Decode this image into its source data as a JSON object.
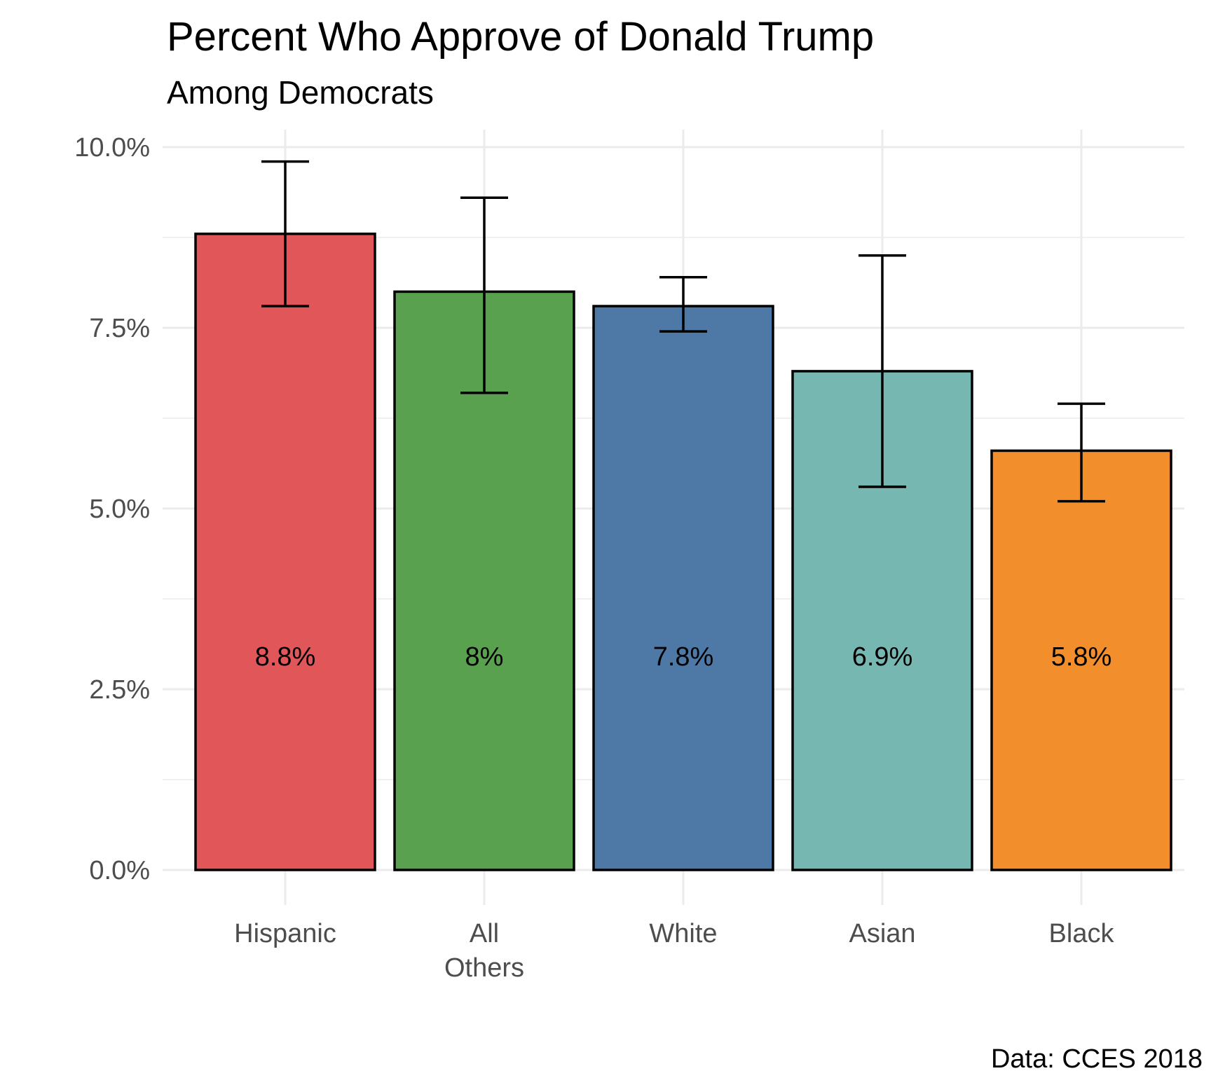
{
  "chart_data": {
    "type": "bar",
    "title": "Percent Who Approve of Donald Trump",
    "subtitle": "Among Democrats",
    "caption": "Data: CCES 2018",
    "xlabel": "",
    "ylabel": "",
    "ylim": [
      0,
      10
    ],
    "yticks": [
      "0.0%",
      "2.5%",
      "5.0%",
      "7.5%",
      "10.0%"
    ],
    "ytick_values": [
      0,
      2.5,
      5,
      7.5,
      10
    ],
    "grid": true,
    "categories": [
      {
        "label_lines": [
          "Hispanic"
        ],
        "value": 8.8,
        "display": "8.8%",
        "ci": [
          7.8,
          9.8
        ],
        "color": "#e15759"
      },
      {
        "label_lines": [
          "All",
          "Others"
        ],
        "value": 8.0,
        "display": "8%",
        "ci": [
          6.6,
          9.3
        ],
        "color": "#59a14f"
      },
      {
        "label_lines": [
          "White"
        ],
        "value": 7.8,
        "display": "7.8%",
        "ci": [
          7.45,
          8.2
        ],
        "color": "#4e79a7"
      },
      {
        "label_lines": [
          "Asian"
        ],
        "value": 6.9,
        "display": "6.9%",
        "ci": [
          5.3,
          8.5
        ],
        "color": "#76b7b2"
      },
      {
        "label_lines": [
          "Black"
        ],
        "value": 5.8,
        "display": "5.8%",
        "ci": [
          5.1,
          6.45
        ],
        "color": "#f28e2b"
      }
    ]
  }
}
